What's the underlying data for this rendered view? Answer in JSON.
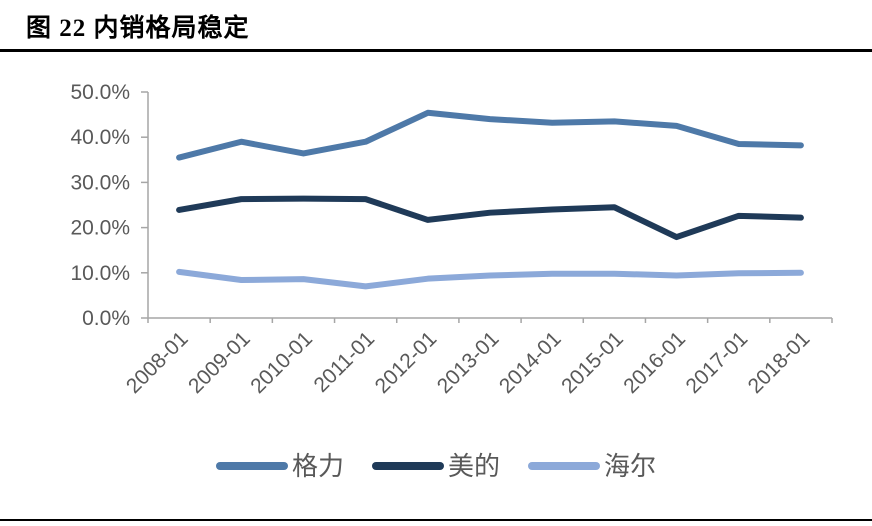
{
  "figure": {
    "title": "图 22 内销格局稳定"
  },
  "chart_data": {
    "type": "line",
    "title": "图 22 内销格局稳定",
    "categories": [
      "2008-01",
      "2009-01",
      "2010-01",
      "2011-01",
      "2012-01",
      "2013-01",
      "2014-01",
      "2015-01",
      "2016-01",
      "2017-01",
      "2018-01"
    ],
    "series": [
      {
        "name": "格力",
        "color": "#4e79a8",
        "values": [
          35.5,
          39.0,
          36.4,
          39.0,
          45.4,
          44.0,
          43.2,
          43.5,
          42.5,
          38.5,
          38.2
        ]
      },
      {
        "name": "美的",
        "color": "#1f3a58",
        "values": [
          23.9,
          26.3,
          26.4,
          26.3,
          21.7,
          23.3,
          24.0,
          24.5,
          17.9,
          22.6,
          22.2
        ]
      },
      {
        "name": "海尔",
        "color": "#8ca9d9",
        "values": [
          10.2,
          8.4,
          8.6,
          7.0,
          8.7,
          9.4,
          9.8,
          9.8,
          9.4,
          9.9,
          10.0
        ]
      }
    ],
    "xlabel": "",
    "ylabel": "",
    "ylim": [
      0,
      50
    ],
    "y_ticks": [
      0,
      10,
      20,
      30,
      40,
      50
    ],
    "y_tick_labels": [
      "0.0%",
      "10.0%",
      "20.0%",
      "30.0%",
      "40.0%",
      "50.0%"
    ],
    "grid": false,
    "legend_position": "bottom",
    "axis_color": "#a6a6a6",
    "tick_label_color": "#595959",
    "legend_text_color": "#595959"
  }
}
